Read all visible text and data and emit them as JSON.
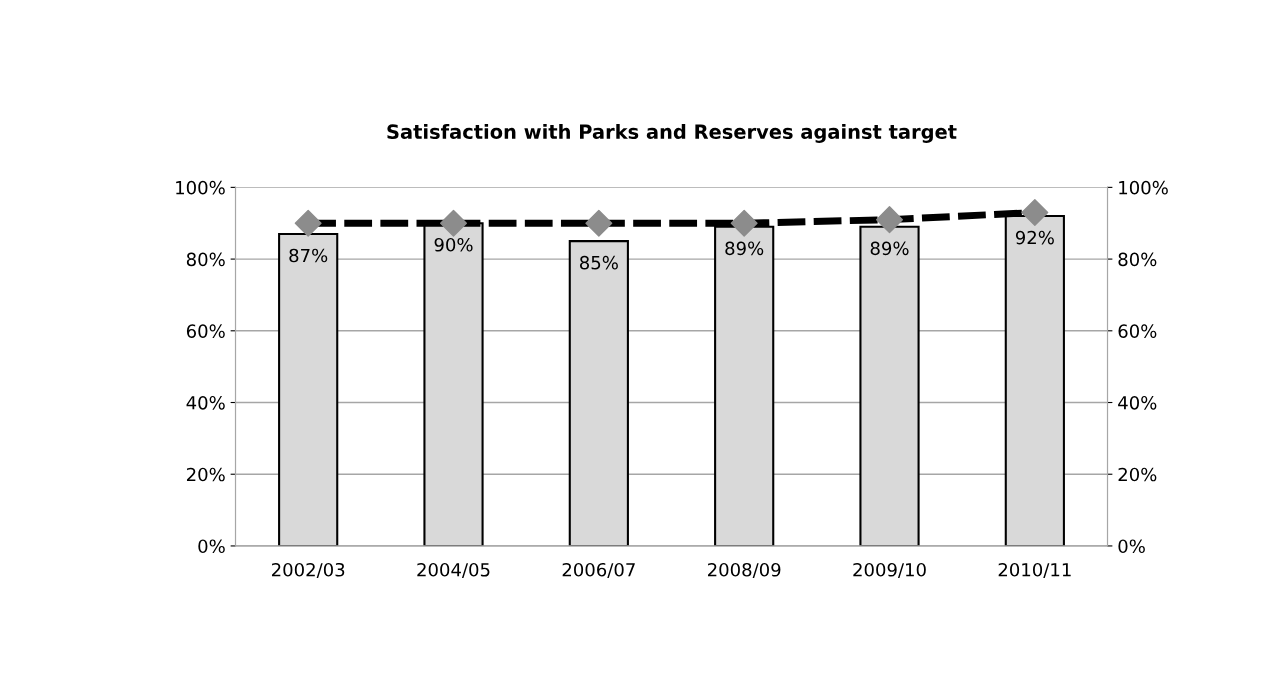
{
  "chart_data": {
    "type": "bar",
    "title": "Satisfaction with Parks and Reserves against target",
    "categories": [
      "2002/03",
      "2004/05",
      "2006/07",
      "2008/09",
      "2009/10",
      "2010/11"
    ],
    "series": [
      {
        "color": "#d9d9d9",
        "values": [
          87,
          90,
          85,
          89,
          89,
          92
        ],
        "value_labels": [
          "87%",
          "90%",
          "85%",
          "89%",
          "89%",
          "92%"
        ]
      },
      {
        "type": "line",
        "color": "#000000",
        "line_style": "dashed",
        "values": [
          90,
          90,
          90,
          90,
          91,
          93
        ]
      },
      {
        "type": "scatter",
        "color": "#8c8c8c",
        "marker": "diamond",
        "values": [
          90,
          90,
          90,
          90,
          91,
          93
        ]
      }
    ],
    "ylim": [
      0,
      100
    ],
    "yticks": [
      {
        "value": 0,
        "label": "0%"
      },
      {
        "value": 20,
        "label": "20%"
      },
      {
        "value": 40,
        "label": "40%"
      },
      {
        "value": 60,
        "label": "60%"
      },
      {
        "value": 80,
        "label": "80%"
      },
      {
        "value": 100,
        "label": "100%"
      }
    ],
    "y2lim": [
      0,
      100
    ],
    "y2ticks": [
      {
        "value": 0,
        "label": "0%"
      },
      {
        "value": 20,
        "label": "20%"
      },
      {
        "value": 40,
        "label": "40%"
      },
      {
        "value": 60,
        "label": "60%"
      },
      {
        "value": 80,
        "label": "80%"
      },
      {
        "value": 100,
        "label": "100%"
      }
    ],
    "grid": "y"
  }
}
